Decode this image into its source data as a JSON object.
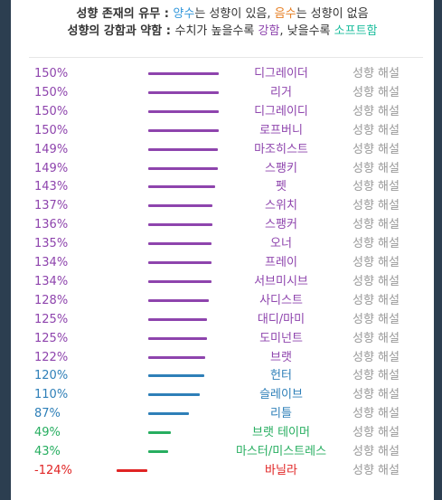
{
  "header": {
    "line1_prefix": "성향 존재의 유무 : ",
    "line1_positive": "양수",
    "line1_mid": "는 성향이 있음, ",
    "line1_negative": "음수",
    "line1_suffix": "는 성향이 없음",
    "line2_prefix": "성향의 강함과 약함 : ",
    "line2_mid": "수치가 높을수록 ",
    "line2_strong": "강함",
    "line2_sep": ", 낮을수록 ",
    "line2_soft": "소프트함"
  },
  "colors": {
    "purple": "#8e44ad",
    "blue": "#2e7fb8",
    "green": "#27ae60",
    "red": "#e02424",
    "link": "#999999"
  },
  "link_label": "성향 해설",
  "rows": [
    {
      "pct_label": "150%",
      "value": 150,
      "name": "디그레이더",
      "color": "purple"
    },
    {
      "pct_label": "150%",
      "value": 150,
      "name": "리거",
      "color": "purple"
    },
    {
      "pct_label": "150%",
      "value": 150,
      "name": "디그레이디",
      "color": "purple"
    },
    {
      "pct_label": "150%",
      "value": 150,
      "name": "로프버니",
      "color": "purple"
    },
    {
      "pct_label": "149%",
      "value": 149,
      "name": "마조히스트",
      "color": "purple"
    },
    {
      "pct_label": "149%",
      "value": 149,
      "name": "스팽키",
      "color": "purple"
    },
    {
      "pct_label": "143%",
      "value": 143,
      "name": "펫",
      "color": "purple"
    },
    {
      "pct_label": "137%",
      "value": 137,
      "name": "스위치",
      "color": "purple"
    },
    {
      "pct_label": "136%",
      "value": 136,
      "name": "스팽커",
      "color": "purple"
    },
    {
      "pct_label": "135%",
      "value": 135,
      "name": "오너",
      "color": "purple"
    },
    {
      "pct_label": "134%",
      "value": 134,
      "name": "프레이",
      "color": "purple"
    },
    {
      "pct_label": "134%",
      "value": 134,
      "name": "서브미시브",
      "color": "purple"
    },
    {
      "pct_label": "128%",
      "value": 128,
      "name": "사디스트",
      "color": "purple"
    },
    {
      "pct_label": "125%",
      "value": 125,
      "name": "대디/마미",
      "color": "purple"
    },
    {
      "pct_label": "125%",
      "value": 125,
      "name": "도미넌트",
      "color": "purple"
    },
    {
      "pct_label": "122%",
      "value": 122,
      "name": "브랫",
      "color": "purple"
    },
    {
      "pct_label": "120%",
      "value": 120,
      "name": "헌터",
      "color": "blue"
    },
    {
      "pct_label": "110%",
      "value": 110,
      "name": "슬레이브",
      "color": "blue"
    },
    {
      "pct_label": "87%",
      "value": 87,
      "name": "리틀",
      "color": "blue"
    },
    {
      "pct_label": "49%",
      "value": 49,
      "name": "브랫 테이머",
      "color": "green"
    },
    {
      "pct_label": "43%",
      "value": 43,
      "name": "마스터/미스트레스",
      "color": "green"
    },
    {
      "pct_label": "-124%",
      "value": -124,
      "name": "바닐라",
      "color": "red"
    }
  ]
}
